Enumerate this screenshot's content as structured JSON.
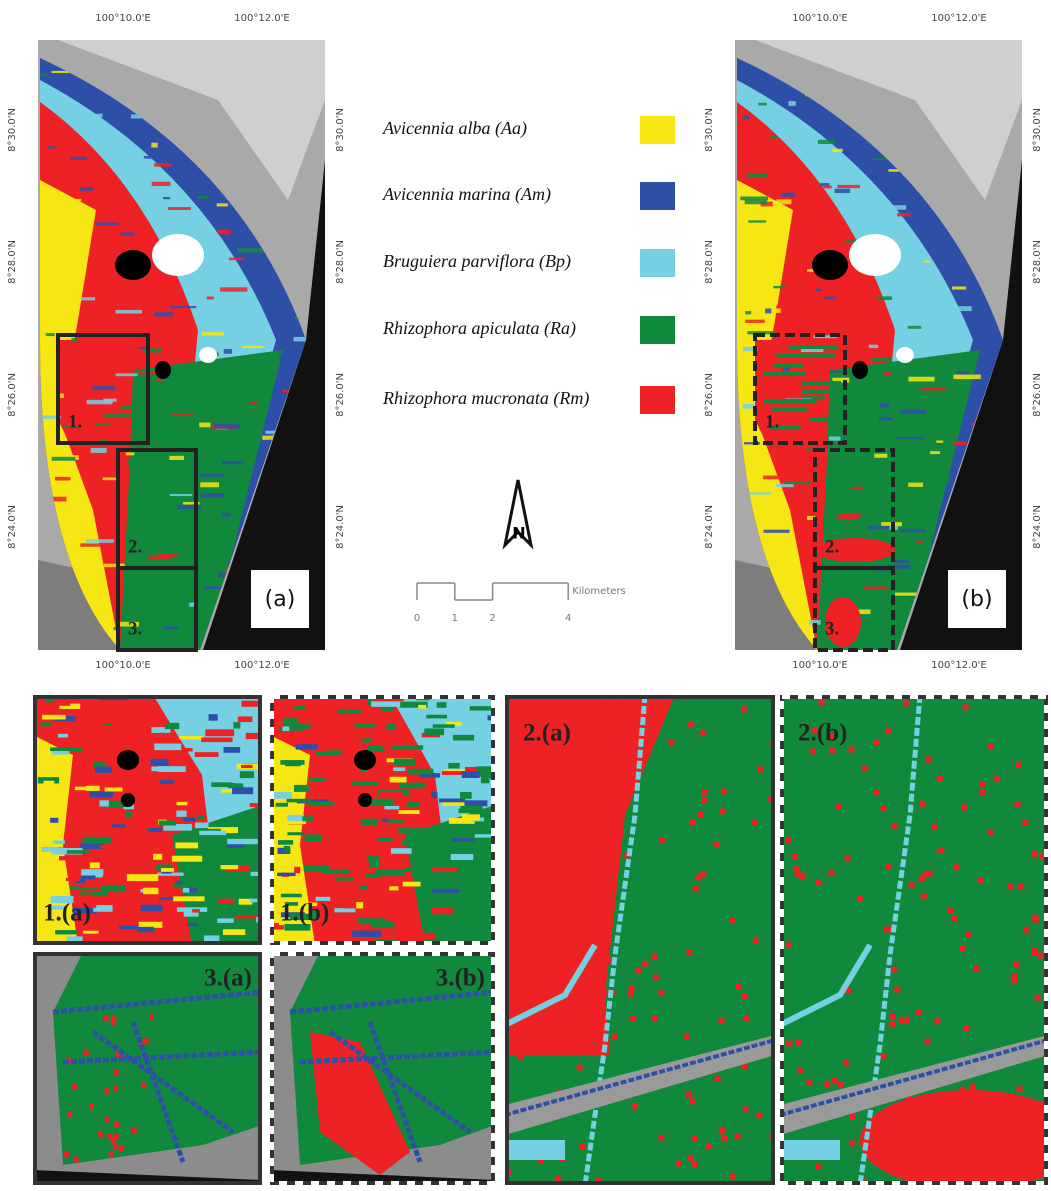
{
  "maps": [
    {
      "panel": "(a)",
      "boxes": [
        "1.",
        "2.",
        "3."
      ],
      "top_ticks": [
        "100°10.0'E",
        "100°12.0'E"
      ],
      "bottom_ticks": [
        "100°10.0'E",
        "100°12.0'E"
      ],
      "left_ticks": [
        "8°30.0'N",
        "8°28.0'N",
        "8°26.0'N",
        "8°24.0'N"
      ],
      "right_ticks": [
        "8°30.0'N",
        "8°28.0'N",
        "8°26.0'N",
        "8°24.0'N"
      ]
    },
    {
      "panel": "(b)",
      "boxes": [
        "1.",
        "2.",
        "3."
      ],
      "top_ticks": [
        "100°10.0'E",
        "100°12.0'E"
      ],
      "bottom_ticks": [
        "100°10.0'E",
        "100°12.0'E"
      ],
      "left_ticks": [
        "8°30.0'N",
        "8°28.0'N",
        "8°26.0'N",
        "8°24.0'N"
      ],
      "right_ticks": [
        "8°30.0'N",
        "8°28.0'N",
        "8°26.0'N",
        "8°24.0'N"
      ]
    }
  ],
  "legend": [
    {
      "name": "Avicennia alba (Aa)",
      "color": "#f5e614"
    },
    {
      "name": "Avicennia marina (Am)",
      "color": "#2e4fa8"
    },
    {
      "name": "Bruguiera parviflora (Bp)",
      "color": "#74d0e2"
    },
    {
      "name": "Rhizophora apiculata (Ra)",
      "color": "#10893d"
    },
    {
      "name": "Rhizophora mucronata (Rm)",
      "color": "#ee2124"
    }
  ],
  "north_arrow": "N",
  "scale_bar": {
    "ticks": [
      0,
      1,
      2,
      4
    ],
    "unit": "Kilometers"
  },
  "insets": [
    "1.(a)",
    "1.(b)",
    "3.(a)",
    "3.(b)",
    "2.(a)",
    "2.(b)"
  ]
}
